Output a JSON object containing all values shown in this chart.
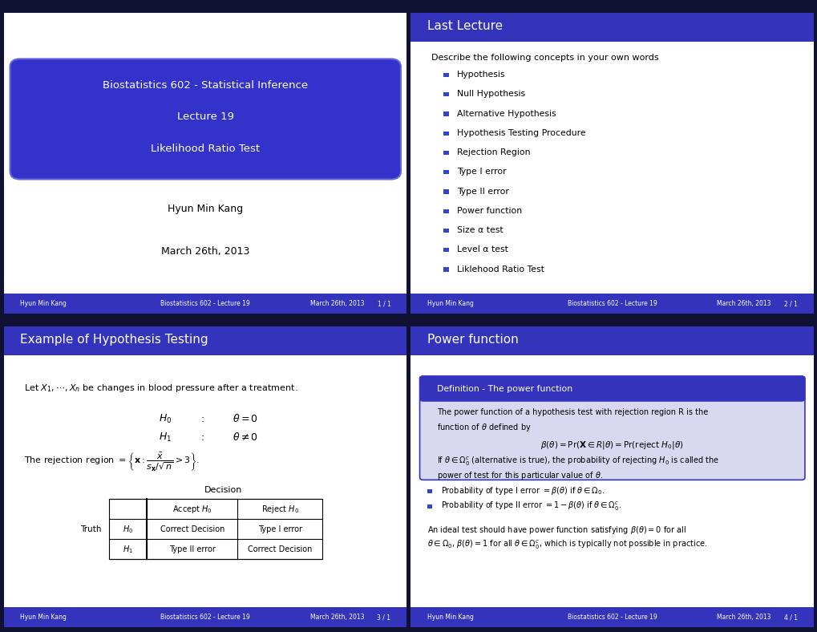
{
  "bg_color": "#1a1a2e",
  "header_color": "#3333cc",
  "dark_header_color": "#1a1a6e",
  "footer_color": "#4444cc",
  "slide2": {
    "header": "Last Lecture",
    "body_intro": "Describe the following concepts in your own words",
    "items": [
      "Hypothesis",
      "Null Hypothesis",
      "Alternative Hypothesis",
      "Hypothesis Testing Procedure",
      "Rejection Region",
      "Type I error",
      "Type II error",
      "Power function",
      "Size α test",
      "Level α test",
      "Liklehood Ratio Test"
    ]
  },
  "slide3": {
    "header": "Example of Hypothesis Testing"
  },
  "slide4": {
    "header": "Power function",
    "def_title": "Definition - The power function"
  },
  "footer": {
    "left": "Hyun Min Kang",
    "center": "Biostatistics 602 - Lecture 19",
    "right_1": "March 26th, 2013",
    "pages": [
      "1 / 1",
      "2 / 1",
      "3 / 1",
      "4 / 1"
    ]
  },
  "title_lines": [
    "Biostatistics 602 - Statistical Inference",
    "Lecture 19",
    "Likelihood Ratio Test"
  ],
  "author": "Hyun Min Kang",
  "date": "March 26th, 2013"
}
